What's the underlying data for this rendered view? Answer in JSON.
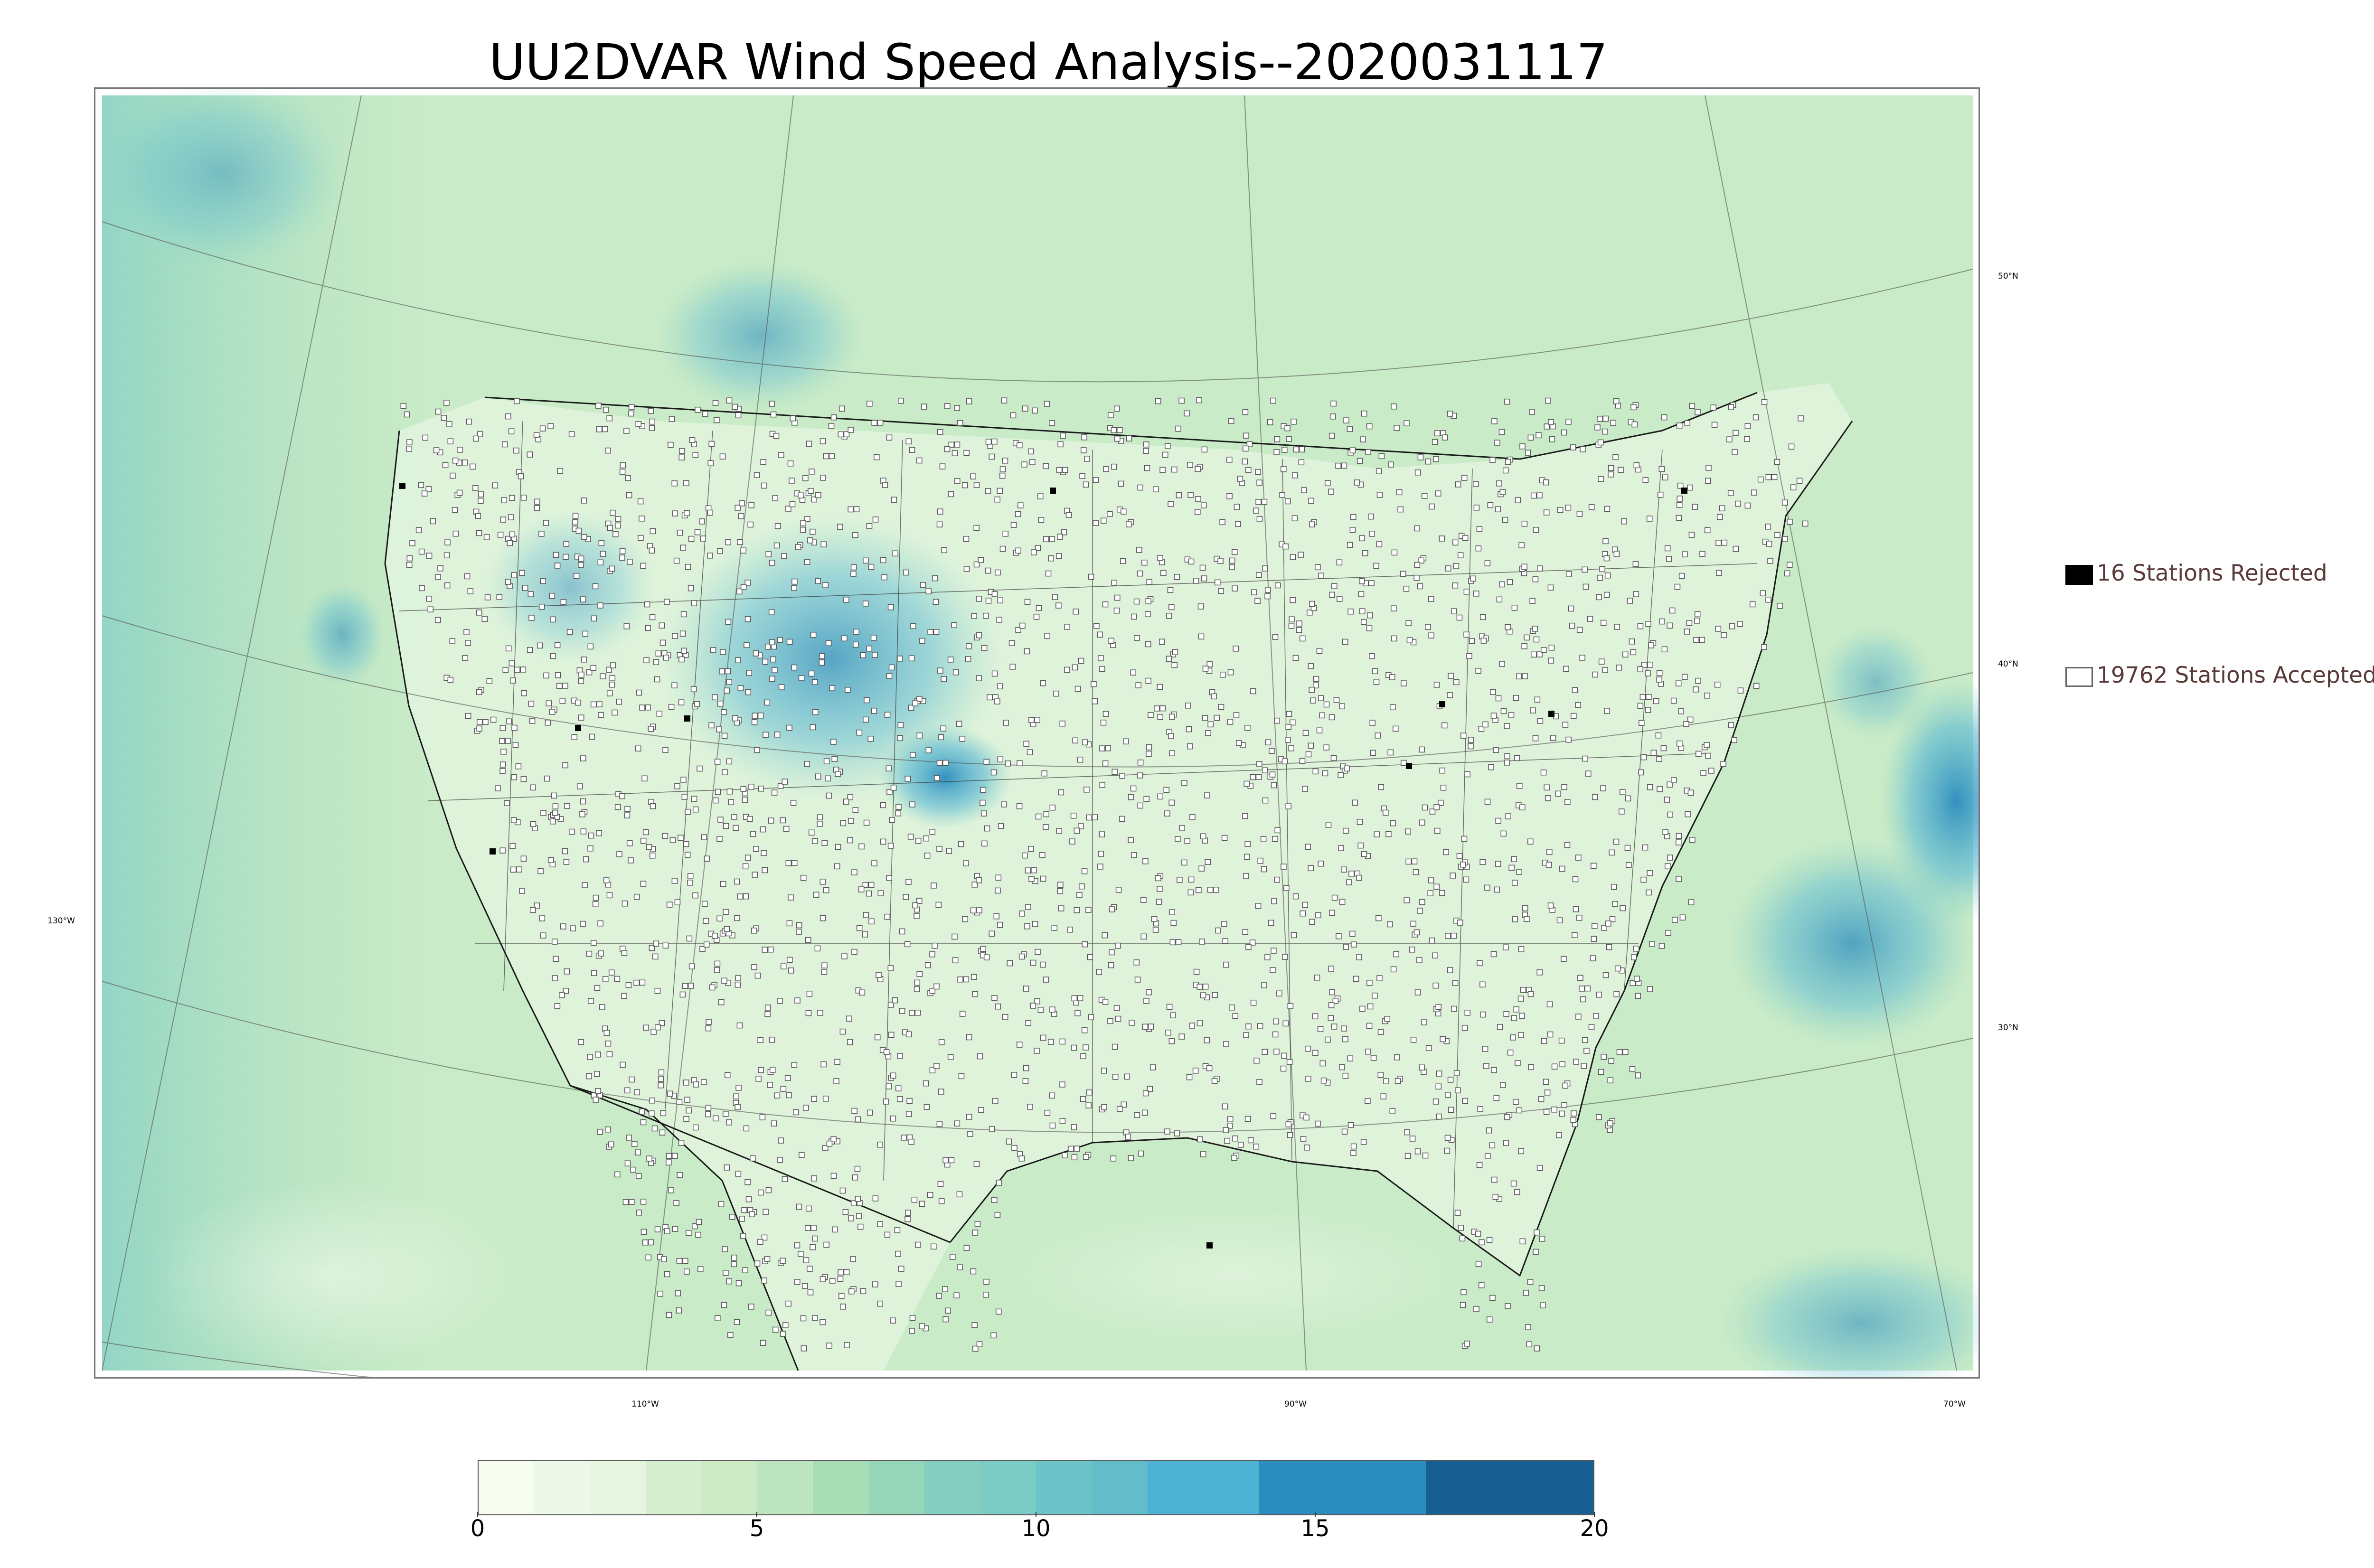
{
  "title": "UU2DVAR Wind Speed Analysis--2020031117",
  "map": {
    "projection": "Lambert conformal conic",
    "background_color": "#c9ebc8",
    "land_texture_color": "#e6f5e2",
    "high_wind_color": "#2b8cbe",
    "line_color": "#1a1a1a",
    "latitude_labels": [
      "50°N",
      "40°N",
      "30°N"
    ],
    "longitude_labels": [
      "130°W",
      "110°W",
      "90°W",
      "70°W"
    ]
  },
  "legend": {
    "rejected": {
      "count": 16,
      "label": "16 Stations Rejected",
      "marker": "filled-black-square"
    },
    "accepted": {
      "count": 19762,
      "label": "19762 Stations Accepted",
      "marker": "open-square"
    }
  },
  "colorbar": {
    "min": 0,
    "max": 20,
    "ticks": [
      "0",
      "5",
      "10",
      "15",
      "20"
    ],
    "bins": [
      {
        "from": 0,
        "to": 1,
        "color": "#f7fcf0"
      },
      {
        "from": 1,
        "to": 2,
        "color": "#eef8ea"
      },
      {
        "from": 2,
        "to": 3,
        "color": "#e5f5e0"
      },
      {
        "from": 3,
        "to": 4,
        "color": "#d7efd1"
      },
      {
        "from": 4,
        "to": 5,
        "color": "#ccebc5"
      },
      {
        "from": 5,
        "to": 6,
        "color": "#bde5bf"
      },
      {
        "from": 6,
        "to": 7,
        "color": "#a8ddb5"
      },
      {
        "from": 7,
        "to": 8,
        "color": "#95d5b8"
      },
      {
        "from": 8,
        "to": 9,
        "color": "#85cfc0"
      },
      {
        "from": 9,
        "to": 10,
        "color": "#7bccc4"
      },
      {
        "from": 10,
        "to": 11,
        "color": "#6cc4c8"
      },
      {
        "from": 11,
        "to": 12,
        "color": "#62bcc9"
      },
      {
        "from": 12,
        "to": 14,
        "color": "#4eb3d3"
      },
      {
        "from": 14,
        "to": 17,
        "color": "#2b8cbe"
      },
      {
        "from": 17,
        "to": 20,
        "color": "#185f94"
      }
    ]
  }
}
